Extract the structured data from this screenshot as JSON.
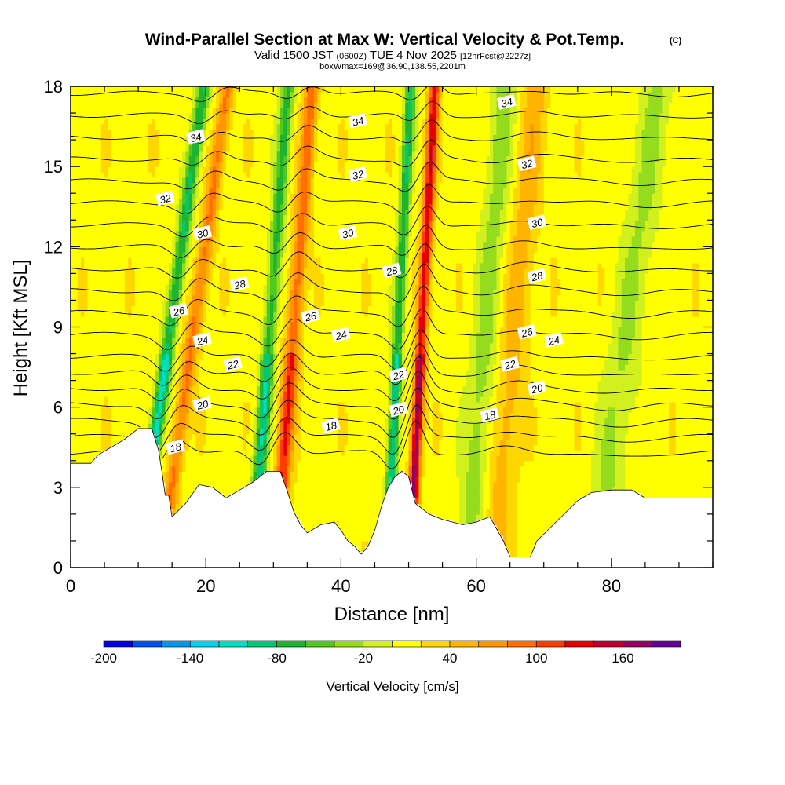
{
  "chart_data": {
    "type": "heatmap",
    "title": "Wind-Parallel Section at Max W: Vertical Velocity & Pot.Temp.",
    "title_suffix": "(C)",
    "subtitle": {
      "prefix": "Valid 1500 JST",
      "utc": "(0600Z)",
      "date": "TUE 4 Nov 2025",
      "forecast": "[12hrFcst@2227z]"
    },
    "subtitle2": "boxWmax=169@36.90,138.55,2201m",
    "xlabel": "Distance [nm]",
    "ylabel": "Height [Kft MSL]",
    "xlim": [
      0,
      95
    ],
    "ylim": [
      0,
      18
    ],
    "x_ticks": [
      0,
      20,
      40,
      60,
      80
    ],
    "y_ticks": [
      0,
      3,
      6,
      9,
      12,
      15,
      18
    ],
    "colorbar": {
      "label": "Vertical Velocity [cm/s]",
      "range": [
        -200,
        200
      ],
      "ticks": [
        -200,
        -140,
        -80,
        -20,
        40,
        100,
        160
      ],
      "colors": [
        "#0000e6",
        "#0050f0",
        "#0096f0",
        "#00d2f0",
        "#00e0c0",
        "#00c878",
        "#1eb432",
        "#50c81e",
        "#96dc1e",
        "#d2f01e",
        "#ffff00",
        "#ffd700",
        "#ffb400",
        "#ff9600",
        "#ff6e00",
        "#ff3c00",
        "#e60000",
        "#be0030",
        "#960060",
        "#640096"
      ]
    },
    "base_value_cms": 12,
    "terrain_kft": [
      [
        0,
        3.9
      ],
      [
        3,
        3.9
      ],
      [
        4,
        4.2
      ],
      [
        8,
        4.8
      ],
      [
        10,
        5.2
      ],
      [
        12,
        5.2
      ],
      [
        13,
        4.4
      ],
      [
        13.5,
        3.6
      ],
      [
        14,
        2.7
      ],
      [
        14.5,
        2.7
      ],
      [
        15,
        1.9
      ],
      [
        17,
        2.4
      ],
      [
        19,
        3.1
      ],
      [
        21,
        3.0
      ],
      [
        23,
        2.6
      ],
      [
        25,
        2.9
      ],
      [
        27,
        3.2
      ],
      [
        29,
        3.6
      ],
      [
        31,
        3.6
      ],
      [
        32,
        2.9
      ],
      [
        33,
        2.1
      ],
      [
        34,
        1.6
      ],
      [
        35,
        1.3
      ],
      [
        37,
        1.6
      ],
      [
        39,
        1.7
      ],
      [
        40,
        1.4
      ],
      [
        41,
        1.0
      ],
      [
        42,
        0.8
      ],
      [
        43,
        0.5
      ],
      [
        44,
        0.8
      ],
      [
        45,
        1.4
      ],
      [
        46,
        2.3
      ],
      [
        47,
        3.0
      ],
      [
        48,
        3.4
      ],
      [
        49,
        3.6
      ],
      [
        50,
        3.4
      ],
      [
        51,
        2.4
      ],
      [
        53,
        2.0
      ],
      [
        55,
        1.8
      ],
      [
        58,
        1.6
      ],
      [
        60,
        1.7
      ],
      [
        62,
        1.9
      ],
      [
        64,
        1.0
      ],
      [
        65,
        0.4
      ],
      [
        68,
        0.4
      ],
      [
        69,
        1.0
      ],
      [
        71,
        1.5
      ],
      [
        73,
        2.0
      ],
      [
        75,
        2.5
      ],
      [
        77,
        2.8
      ],
      [
        80,
        2.9
      ],
      [
        83,
        2.9
      ],
      [
        85,
        2.6
      ],
      [
        90,
        2.6
      ],
      [
        95,
        2.6
      ]
    ],
    "updrafts": [
      {
        "x0": 12,
        "slope": 0.55,
        "width": 1.0,
        "amp": -130
      },
      {
        "x0": 15.5,
        "slope": 0.55,
        "width": 1.1,
        "amp": 75
      },
      {
        "x0": 28,
        "slope": 0.3,
        "width": 1.0,
        "amp": -110
      },
      {
        "x0": 31.5,
        "slope": 0.3,
        "width": 1.1,
        "amp": 110
      },
      {
        "x0": 47.5,
        "slope": 0.2,
        "width": 0.8,
        "amp": -120
      },
      {
        "x0": 51,
        "slope": 0.2,
        "width": 0.8,
        "amp": 165
      },
      {
        "x0": 60,
        "slope": 0.3,
        "width": 2.0,
        "amp": -40
      },
      {
        "x0": 64,
        "slope": 0.35,
        "width": 2.0,
        "amp": 40
      },
      {
        "x0": 80,
        "slope": 0.5,
        "width": 2.5,
        "amp": -35
      }
    ],
    "theta_contours_c": [
      18,
      19,
      20,
      21,
      22,
      23,
      24,
      25,
      26,
      27,
      28,
      29,
      30,
      31,
      32,
      33,
      34,
      35,
      36
    ],
    "theta_labels": [
      {
        "text": "34",
        "x": 18.5,
        "y": 16.1
      },
      {
        "text": "34",
        "x": 42.5,
        "y": 16.7
      },
      {
        "text": "34",
        "x": 64.5,
        "y": 17.4
      },
      {
        "text": "32",
        "x": 14.0,
        "y": 13.8
      },
      {
        "text": "32",
        "x": 42.5,
        "y": 14.7
      },
      {
        "text": "32",
        "x": 67.5,
        "y": 15.1
      },
      {
        "text": "30",
        "x": 19.5,
        "y": 12.5
      },
      {
        "text": "30",
        "x": 41.0,
        "y": 12.5
      },
      {
        "text": "30",
        "x": 69.0,
        "y": 12.9
      },
      {
        "text": "28",
        "x": 25.0,
        "y": 10.6
      },
      {
        "text": "28",
        "x": 47.5,
        "y": 11.1
      },
      {
        "text": "28",
        "x": 69.0,
        "y": 10.9
      },
      {
        "text": "26",
        "x": 16.0,
        "y": 9.6
      },
      {
        "text": "26",
        "x": 35.5,
        "y": 9.4
      },
      {
        "text": "26",
        "x": 67.5,
        "y": 8.8
      },
      {
        "text": "24",
        "x": 19.5,
        "y": 8.5
      },
      {
        "text": "24",
        "x": 40.0,
        "y": 8.7
      },
      {
        "text": "24",
        "x": 71.5,
        "y": 8.5
      },
      {
        "text": "22",
        "x": 24.0,
        "y": 7.6
      },
      {
        "text": "22",
        "x": 65.0,
        "y": 7.6
      },
      {
        "text": "22",
        "x": 48.5,
        "y": 7.2
      },
      {
        "text": "20",
        "x": 19.5,
        "y": 6.1
      },
      {
        "text": "20",
        "x": 48.5,
        "y": 5.9
      },
      {
        "text": "20",
        "x": 69.0,
        "y": 6.7
      },
      {
        "text": "18",
        "x": 15.5,
        "y": 4.5
      },
      {
        "text": "18",
        "x": 38.5,
        "y": 5.3
      },
      {
        "text": "18",
        "x": 62.0,
        "y": 5.7
      }
    ]
  }
}
